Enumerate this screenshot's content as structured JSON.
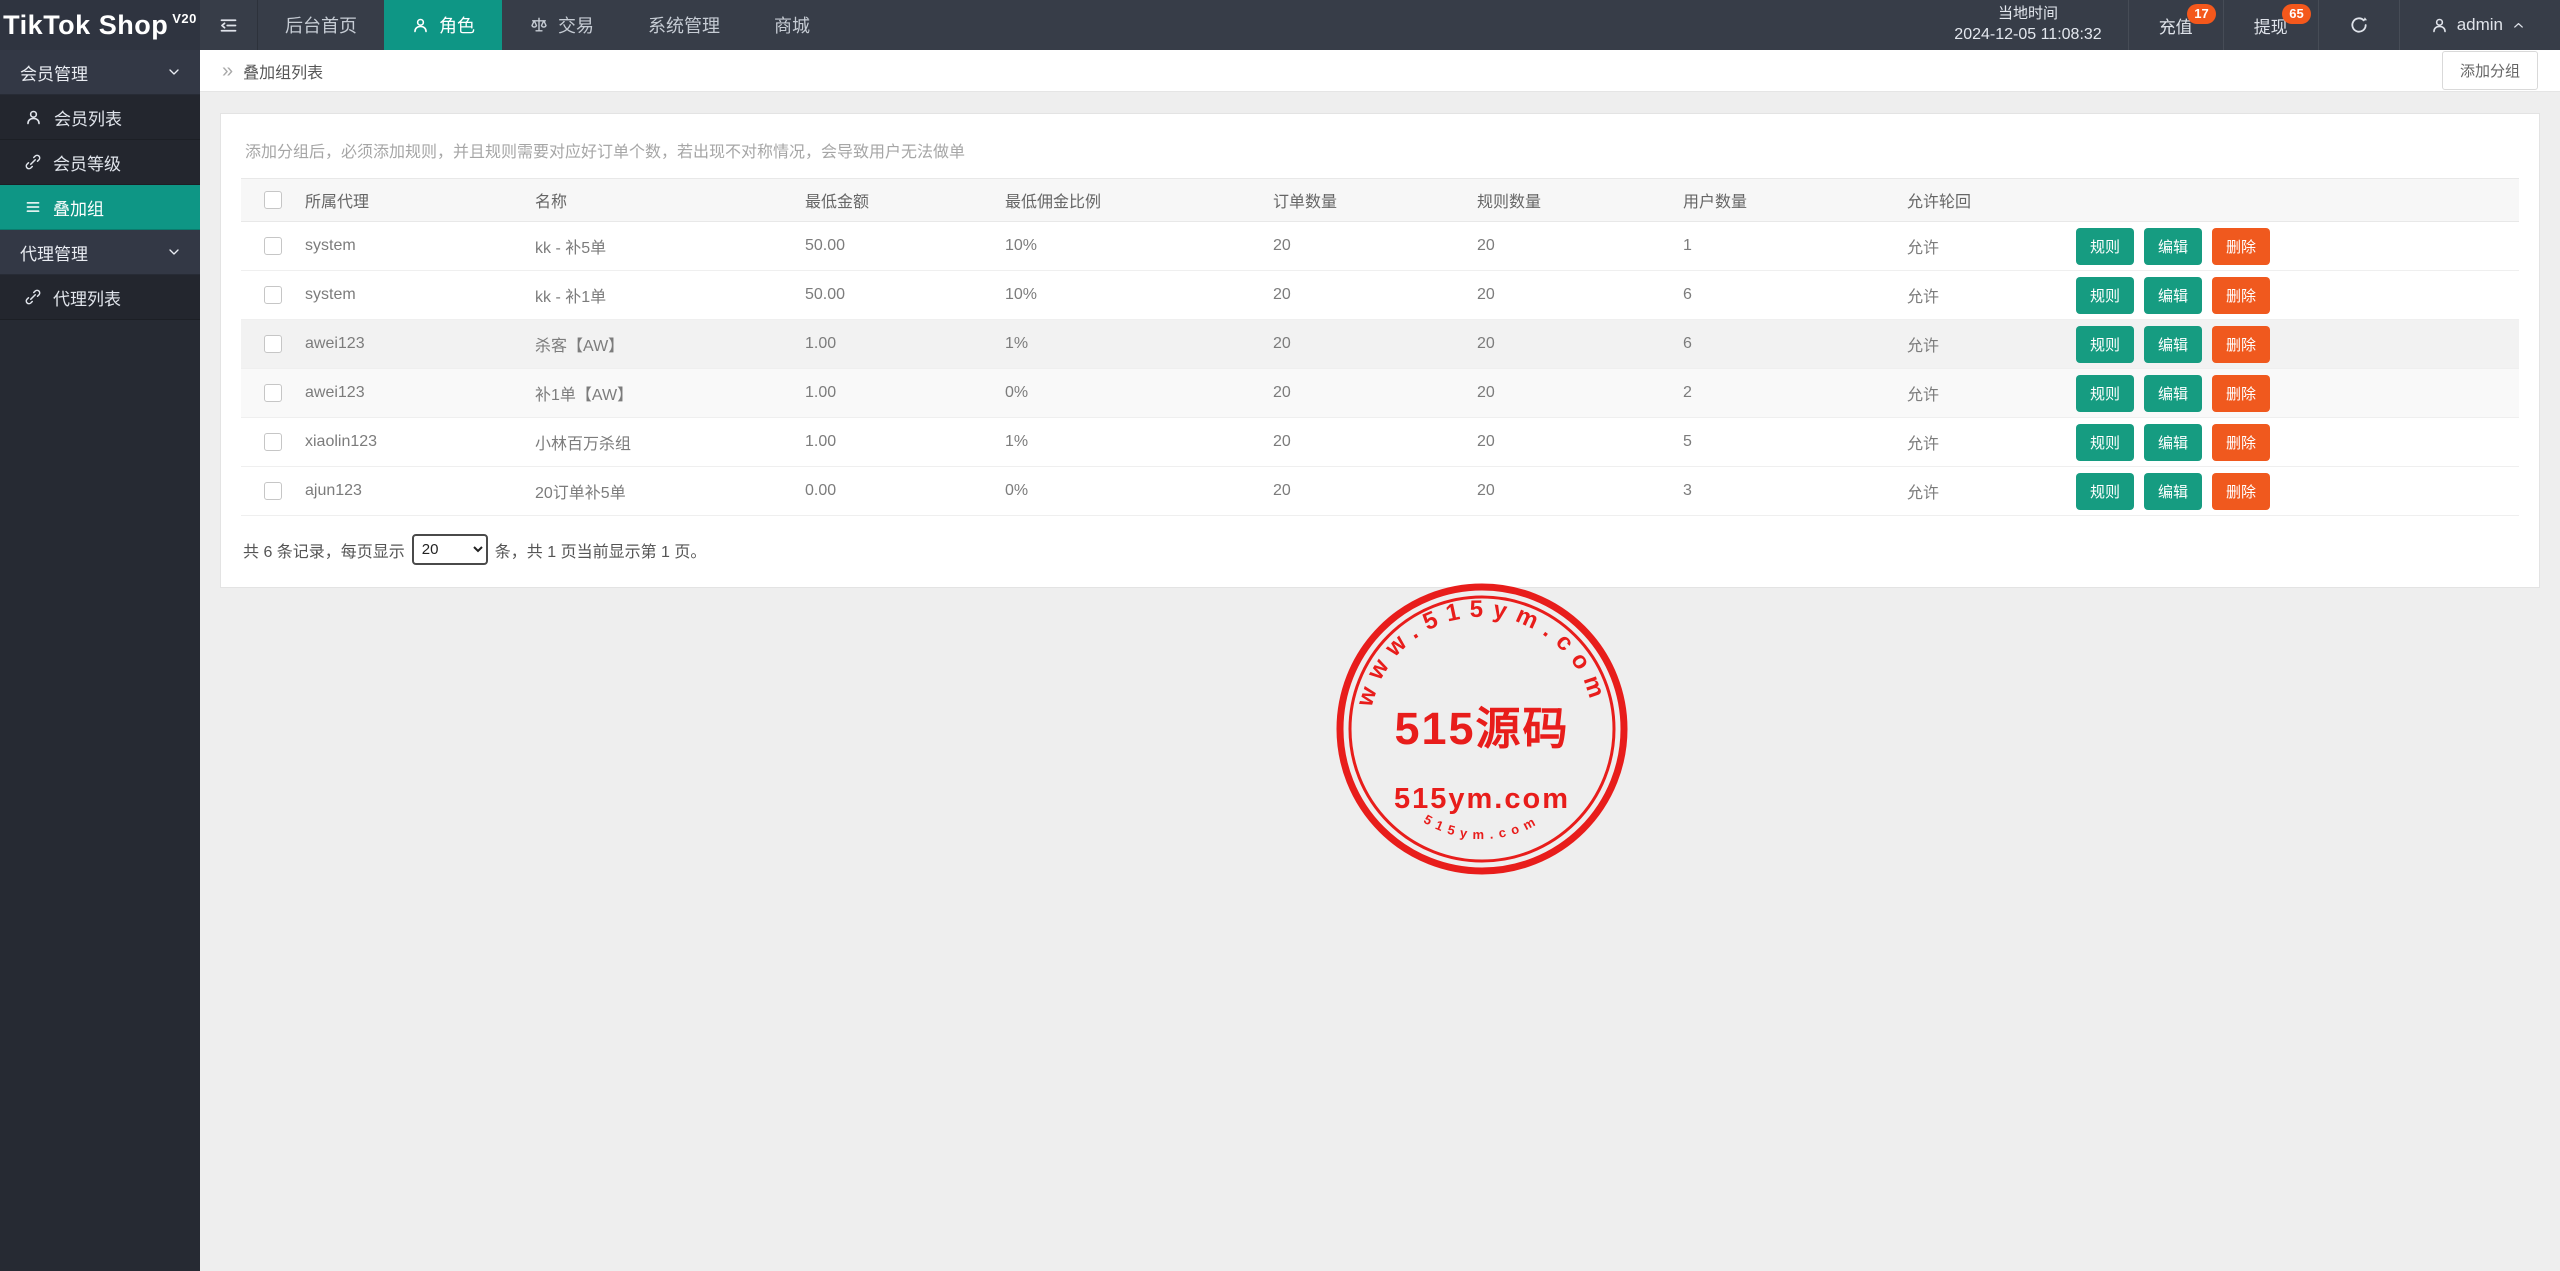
{
  "topbar": {
    "logo_text": "TikTok Shop",
    "logo_sup": "V20",
    "nav": [
      {
        "id": "dashboard",
        "label": "后台首页",
        "icon": null,
        "active": false
      },
      {
        "id": "roles",
        "label": "角色",
        "icon": "person-icon",
        "active": true
      },
      {
        "id": "trade",
        "label": "交易",
        "icon": "scales-icon",
        "active": false
      },
      {
        "id": "system",
        "label": "系统管理",
        "icon": null,
        "active": false
      },
      {
        "id": "mall",
        "label": "商城",
        "icon": null,
        "active": false
      }
    ],
    "time_label": "当地时间",
    "time_value": "2024-12-05 11:08:32",
    "recharge": {
      "label": "充值",
      "badge": "17"
    },
    "withdraw": {
      "label": "提现",
      "badge": "65"
    },
    "username": "admin"
  },
  "sidebar": {
    "items": [
      {
        "id": "member-management",
        "label": "会员管理",
        "type": "group",
        "icon": null
      },
      {
        "id": "member-list",
        "label": "会员列表",
        "type": "item",
        "icon": "person-icon",
        "active": false
      },
      {
        "id": "member-level",
        "label": "会员等级",
        "type": "item",
        "icon": "link-icon",
        "active": false
      },
      {
        "id": "overlay-group",
        "label": "叠加组",
        "type": "item",
        "icon": "list-icon",
        "active": true
      },
      {
        "id": "agent-management",
        "label": "代理管理",
        "type": "group",
        "icon": null
      },
      {
        "id": "agent-list",
        "label": "代理列表",
        "type": "item",
        "icon": "link-icon",
        "active": false
      }
    ]
  },
  "breadcrumb": {
    "arrow": "»",
    "title": "叠加组列表"
  },
  "toolbar": {
    "add_group_label": "添加分组"
  },
  "notice": "添加分组后，必须添加规则，并且规则需要对应好订单个数，若出现不对称情况，会导致用户无法做单",
  "table": {
    "headers": [
      "所属代理",
      "名称",
      "最低金额",
      "最低佣金比例",
      "订单数量",
      "规则数量",
      "用户数量",
      "允许轮回"
    ],
    "rows": [
      {
        "agent": "system",
        "name": "kk - 补5单",
        "min_amount": "50.00",
        "min_commission": "10%",
        "orders": "20",
        "rules": "20",
        "users": "1",
        "allow": "允许"
      },
      {
        "agent": "system",
        "name": "kk - 补1单",
        "min_amount": "50.00",
        "min_commission": "10%",
        "orders": "20",
        "rules": "20",
        "users": "6",
        "allow": "允许"
      },
      {
        "agent": "awei123",
        "name": "杀客【AW】",
        "min_amount": "1.00",
        "min_commission": "1%",
        "orders": "20",
        "rules": "20",
        "users": "6",
        "allow": "允许"
      },
      {
        "agent": "awei123",
        "name": "补1单【AW】",
        "min_amount": "1.00",
        "min_commission": "0%",
        "orders": "20",
        "rules": "20",
        "users": "2",
        "allow": "允许"
      },
      {
        "agent": "xiaolin123",
        "name": "小林百万杀组",
        "min_amount": "1.00",
        "min_commission": "1%",
        "orders": "20",
        "rules": "20",
        "users": "5",
        "allow": "允许"
      },
      {
        "agent": "ajun123",
        "name": "20订单补5单",
        "min_amount": "0.00",
        "min_commission": "0%",
        "orders": "20",
        "rules": "20",
        "users": "3",
        "allow": "允许"
      }
    ],
    "actions": [
      {
        "id": "rule",
        "label": "规则",
        "color": "#169c81"
      },
      {
        "id": "edit",
        "label": "编辑",
        "color": "#169c81"
      },
      {
        "id": "delete",
        "label": "删除",
        "color": "#f0591e"
      }
    ]
  },
  "pagination": {
    "text_before": "共 6 条记录，每页显示",
    "per_page": "20",
    "text_after": "条，共 1 页当前显示第 1 页。"
  },
  "watermark": {
    "top_text": "www.515ym.com",
    "center_text": "515源码",
    "sub_text": "515ym.com",
    "bottom_text": "515ym.com",
    "color": "#e8100e"
  },
  "colors": {
    "accent_teal": "#0e9685",
    "button_teal": "#169c81",
    "button_orange": "#f0591e",
    "badge_orange": "#f4581c",
    "topbar_bg": "#373d48",
    "sidebar_bg": "#262a33"
  }
}
